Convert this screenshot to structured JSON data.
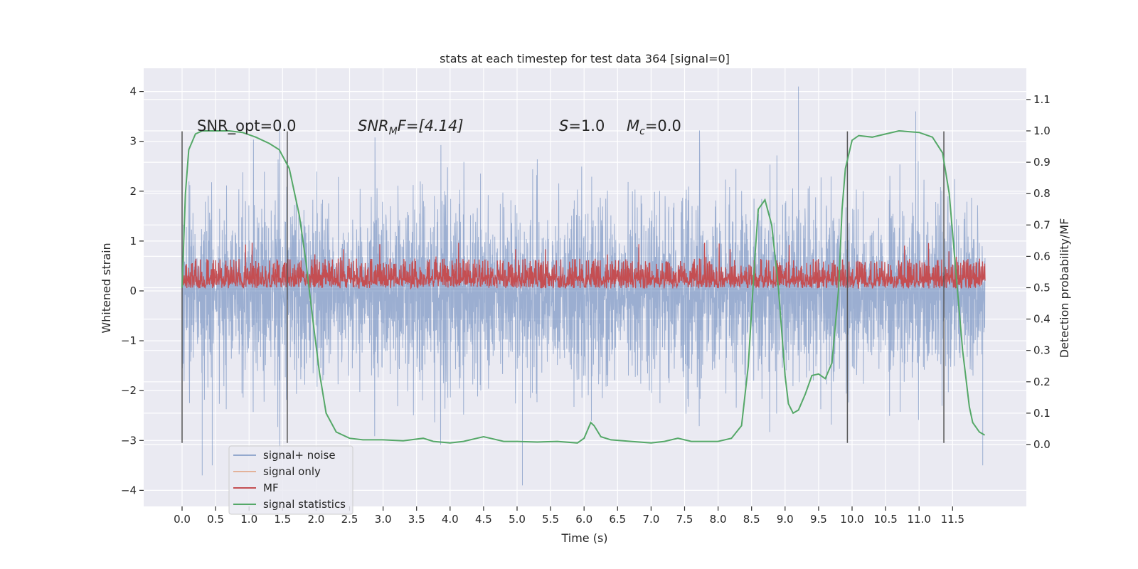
{
  "chart_data": {
    "type": "line",
    "title": "stats at each timestep for test data 364 [signal=0]",
    "xlabel": "Time (s)",
    "ylabel": "Whitened strain",
    "ylabel_right": "Detection probability/MF",
    "xlim": [
      -0.6,
      12.6
    ],
    "ylim": [
      -4.4,
      4.4
    ],
    "ylim_right": [
      -0.2,
      1.2
    ],
    "xticks": [
      "0.0",
      "0.5",
      "1.0",
      "1.5",
      "2.0",
      "2.5",
      "3.0",
      "3.5",
      "4.0",
      "4.5",
      "5.0",
      "5.5",
      "6.0",
      "6.5",
      "7.0",
      "7.5",
      "8.0",
      "8.5",
      "9.0",
      "9.5",
      "10.0",
      "10.5",
      "11.0",
      "11.5"
    ],
    "yticks": [
      "4",
      "3",
      "2",
      "1",
      "0",
      "−1",
      "−2",
      "−3",
      "−4"
    ],
    "yticks_right": [
      "1.1",
      "1.0",
      "0.9",
      "0.8",
      "0.7",
      "0.6",
      "0.5",
      "0.4",
      "0.3",
      "0.2",
      "0.1",
      "0.0"
    ],
    "grid": true,
    "legend_position": "bottom-left",
    "series": [
      {
        "name": "signal+ noise",
        "color": "#4c72b0",
        "axis": "left",
        "description_values": "dense noise approx between -3.8 and 4.1",
        "range": [
          -3.8,
          4.1
        ],
        "x_range": [
          0.0,
          11.98
        ]
      },
      {
        "name": "signal only",
        "color": "#dd8452",
        "axis": "left",
        "values": []
      },
      {
        "name": "MF",
        "color": "#c44e52",
        "axis": "left",
        "range": [
          0.05,
          1.0
        ],
        "x_range": [
          0.0,
          11.98
        ]
      },
      {
        "name": "signal statistics",
        "color": "#55a868",
        "axis": "right",
        "x": [
          0.0,
          0.05,
          0.1,
          0.2,
          0.3,
          0.5,
          0.7,
          0.9,
          1.1,
          1.3,
          1.45,
          1.6,
          1.75,
          1.85,
          1.95,
          2.05,
          2.15,
          2.3,
          2.5,
          2.7,
          3.0,
          3.3,
          3.6,
          3.75,
          4.0,
          4.2,
          4.4,
          4.5,
          4.6,
          4.8,
          5.0,
          5.3,
          5.6,
          5.9,
          6.0,
          6.1,
          6.15,
          6.25,
          6.4,
          6.7,
          7.0,
          7.2,
          7.4,
          7.6,
          8.0,
          8.2,
          8.35,
          8.45,
          8.55,
          8.6,
          8.7,
          8.8,
          8.9,
          9.0,
          9.05,
          9.12,
          9.2,
          9.3,
          9.4,
          9.5,
          9.6,
          9.7,
          9.8,
          9.85,
          9.9,
          10.0,
          10.1,
          10.3,
          10.5,
          10.7,
          11.0,
          11.2,
          11.35,
          11.45,
          11.55,
          11.65,
          11.75,
          11.8,
          11.9,
          11.98
        ],
        "values": [
          0.5,
          0.8,
          0.94,
          0.99,
          1.0,
          1.0,
          1.0,
          0.995,
          0.98,
          0.96,
          0.94,
          0.88,
          0.73,
          0.58,
          0.4,
          0.23,
          0.1,
          0.04,
          0.02,
          0.015,
          0.015,
          0.012,
          0.02,
          0.01,
          0.005,
          0.01,
          0.02,
          0.025,
          0.02,
          0.01,
          0.01,
          0.008,
          0.01,
          0.005,
          0.02,
          0.07,
          0.06,
          0.025,
          0.015,
          0.01,
          0.005,
          0.01,
          0.02,
          0.01,
          0.01,
          0.02,
          0.06,
          0.25,
          0.6,
          0.75,
          0.78,
          0.7,
          0.5,
          0.22,
          0.13,
          0.1,
          0.11,
          0.16,
          0.22,
          0.225,
          0.21,
          0.26,
          0.5,
          0.75,
          0.88,
          0.97,
          0.985,
          0.98,
          0.99,
          1.0,
          0.995,
          0.98,
          0.93,
          0.8,
          0.55,
          0.3,
          0.12,
          0.07,
          0.04,
          0.03
        ]
      }
    ],
    "vlines": [
      0.0,
      1.57,
      9.93,
      11.37
    ],
    "annotations": [
      {
        "text": "SNR_opt=0.0",
        "x": 0.2,
        "y": 3.2
      },
      {
        "text_main": "SNR",
        "text_sub": "M",
        "text_rest": "F=[4.14]",
        "x": 2.6,
        "y": 3.2
      },
      {
        "text_main": "S",
        "text_rest": "=1.0",
        "x": 5.6,
        "y": 3.2
      },
      {
        "text_main": "M",
        "text_sub": "c",
        "text_rest": "=0.0",
        "x": 6.6,
        "y": 3.2
      }
    ]
  }
}
